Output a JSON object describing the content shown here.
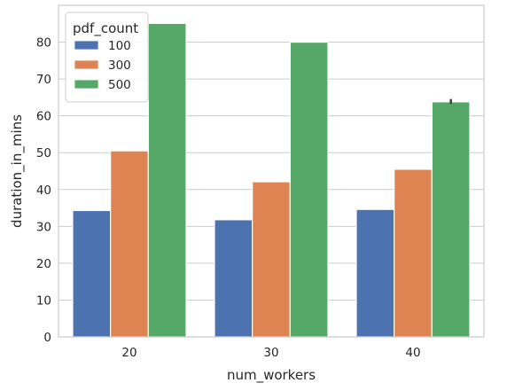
{
  "chart_data": {
    "type": "bar",
    "xlabel": "num_workers",
    "ylabel": "duration_in_mins",
    "categories": [
      "20",
      "30",
      "40"
    ],
    "ylim": [
      0,
      90
    ],
    "yticks": [
      0,
      10,
      20,
      30,
      40,
      50,
      60,
      70,
      80
    ],
    "grid": "horizontal",
    "legend": {
      "title": "pdf_count",
      "placement": "top-left"
    },
    "series": [
      {
        "name": "100",
        "color": "#4c72b0",
        "values": [
          34.3,
          31.8,
          34.6
        ]
      },
      {
        "name": "300",
        "color": "#dd8452",
        "values": [
          50.5,
          42.1,
          45.5
        ]
      },
      {
        "name": "500",
        "color": "#55a868",
        "values": [
          85.1,
          80.0,
          63.8
        ]
      }
    ],
    "error_bars": [
      {
        "series": "500",
        "category": "40",
        "low": 63.5,
        "high": 64.3
      }
    ]
  }
}
